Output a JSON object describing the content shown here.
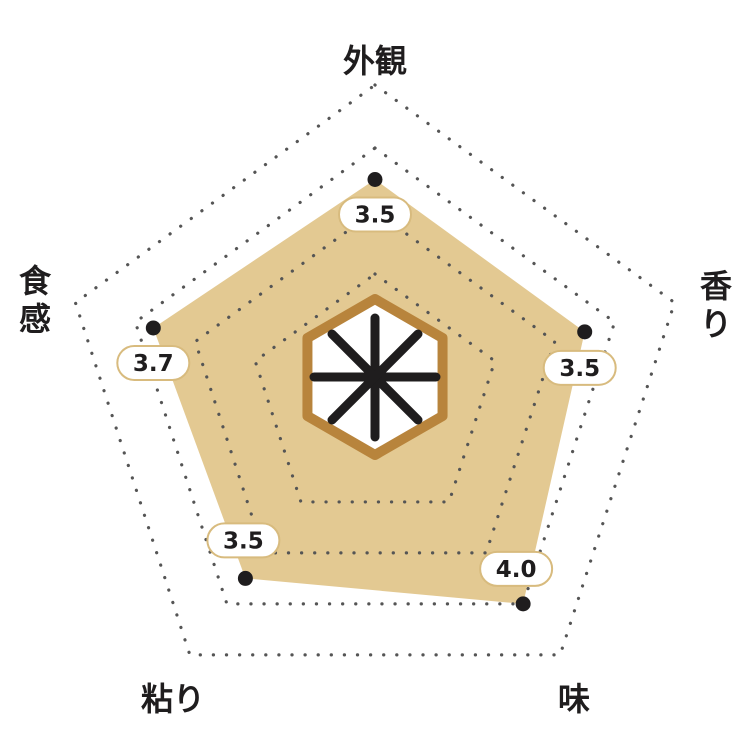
{
  "chart_data": {
    "type": "radar",
    "axes": [
      "外観",
      "香り",
      "味",
      "粘り",
      "食感"
    ],
    "values": [
      3.5,
      3.5,
      4.0,
      3.5,
      3.7
    ],
    "value_labels": [
      "3.5",
      "3.5",
      "4.0",
      "3.5",
      "3.7"
    ],
    "range": [
      0,
      5
    ],
    "grid_levels": [
      2,
      3,
      4,
      5
    ],
    "grid_style": "dotted",
    "center_icon": "rice-kanji-hexagon-icon",
    "colors": {
      "fill": "#e3c992",
      "point": "#1f1d1e",
      "label_border": "#d8bb7e",
      "icon_border": "#b8843c"
    }
  }
}
